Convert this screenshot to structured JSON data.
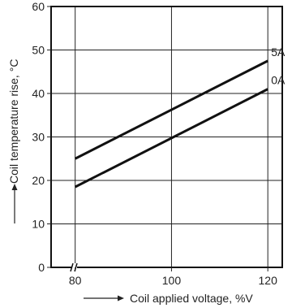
{
  "chart_data": {
    "type": "line",
    "xlabel": "Coil applied voltage, %V",
    "ylabel": "Coil temperature rise, °C",
    "xlim": [
      75,
      123
    ],
    "ylim": [
      0,
      60
    ],
    "x_ticks": [
      80,
      100,
      120
    ],
    "y_ticks": [
      0,
      10,
      20,
      30,
      40,
      50,
      60
    ],
    "grid": true,
    "axis_break": "x",
    "series": [
      {
        "name": "5A",
        "x": [
          80,
          120
        ],
        "values": [
          25,
          47.5
        ]
      },
      {
        "name": "0A",
        "x": [
          80,
          120
        ],
        "values": [
          18.5,
          41
        ]
      }
    ]
  }
}
